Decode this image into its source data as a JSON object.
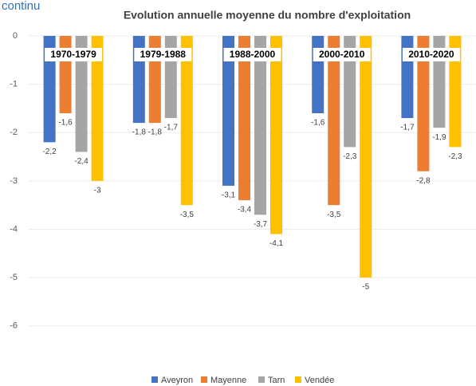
{
  "caption": "continu",
  "chart_data": {
    "type": "bar",
    "title": "Evolution annuelle moyenne du nombre d'exploitation",
    "categories": [
      "1970-1979",
      "1979-1988",
      "1988-2000",
      "2000-2010",
      "2010-2020"
    ],
    "series": [
      {
        "name": "Aveyron",
        "color": "#4472c4",
        "values": [
          -2.2,
          -1.8,
          -3.1,
          -1.6,
          -1.7
        ],
        "value_labels": [
          "-2,2",
          "-1,8",
          "-3,1",
          "-1,6",
          "-1,7"
        ]
      },
      {
        "name": "Mayenne",
        "color": "#ed7d31",
        "values": [
          -1.6,
          -1.8,
          -3.4,
          -3.5,
          -2.8
        ],
        "value_labels": [
          "-1,6",
          "-1,8",
          "-3,4",
          "-3,5",
          "-2,8"
        ]
      },
      {
        "name": "Tarn",
        "color": "#a5a5a5",
        "values": [
          -2.4,
          -1.7,
          -3.7,
          -2.3,
          -1.9
        ],
        "value_labels": [
          "-2,4",
          "-1,7",
          "-3,7",
          "-2,3",
          "-1,9"
        ]
      },
      {
        "name": "Vendée",
        "color": "#ffc000",
        "values": [
          -3,
          -3.5,
          -4.1,
          -5,
          -2.3
        ],
        "value_labels": [
          "-3",
          "-3,5",
          "-4,1",
          "-5",
          "-2,3"
        ]
      }
    ],
    "ylim": [
      -6.5,
      0
    ],
    "yticks": [
      0,
      -1,
      -2,
      -3,
      -4,
      -5,
      -6
    ],
    "grid": true,
    "legend": "bottom"
  }
}
